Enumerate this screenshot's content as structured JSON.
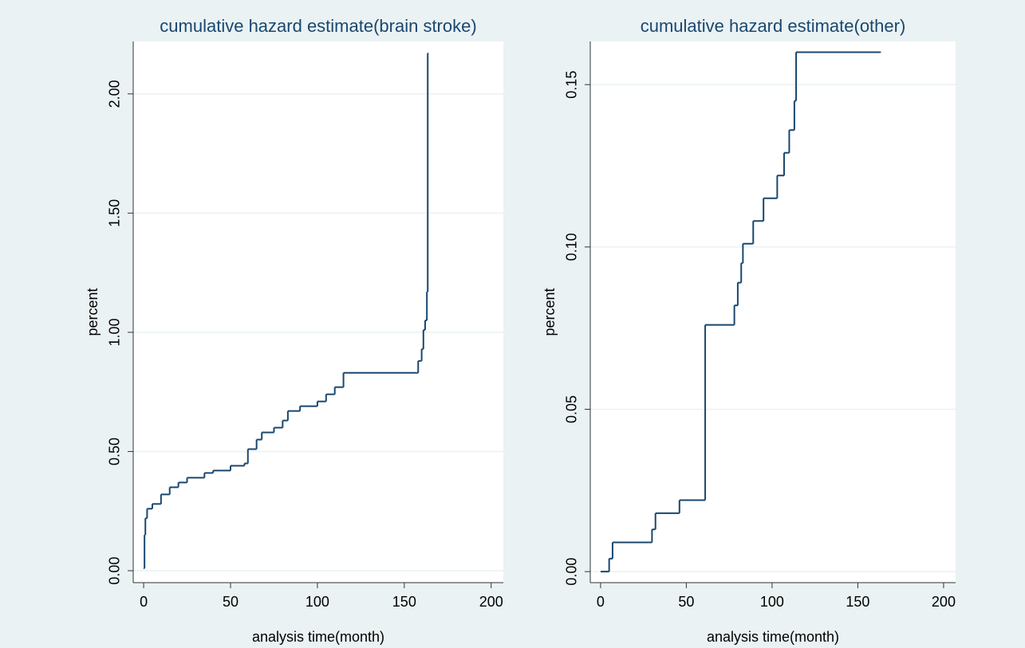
{
  "chart_data": [
    {
      "type": "line",
      "step": true,
      "title": "cumulative hazard estimate(brain stroke)",
      "x_label": "analysis time(month)",
      "y_label": "percent",
      "color": "#1a476f",
      "grid": true,
      "x": [
        0,
        0.5,
        1,
        2,
        5,
        10,
        15,
        20,
        25,
        35,
        40,
        50,
        58,
        60,
        65,
        68,
        75,
        80,
        83,
        90,
        100,
        105,
        110,
        115,
        157,
        158,
        160,
        161,
        162,
        163,
        163.5
      ],
      "values": [
        0.01,
        0.15,
        0.22,
        0.26,
        0.28,
        0.32,
        0.35,
        0.37,
        0.39,
        0.41,
        0.42,
        0.44,
        0.45,
        0.51,
        0.55,
        0.58,
        0.6,
        0.63,
        0.67,
        0.69,
        0.71,
        0.74,
        0.77,
        0.83,
        0.83,
        0.88,
        0.93,
        1.01,
        1.05,
        1.17,
        2.17
      ],
      "xlim": [
        -6,
        207
      ],
      "xticks": [
        0,
        50,
        100,
        150,
        200
      ],
      "ylim": [
        -0.05,
        2.22
      ],
      "yticks": [
        {
          "value": 0,
          "label": "0.00"
        },
        {
          "value": 0.5,
          "label": "0.50"
        },
        {
          "value": 1,
          "label": "1.00"
        },
        {
          "value": 1.5,
          "label": "1.50"
        },
        {
          "value": 2,
          "label": "2.00"
        }
      ]
    },
    {
      "type": "line",
      "step": true,
      "title": "cumulative hazard estimate(other)",
      "x_label": "analysis time(month)",
      "y_label": "percent",
      "color": "#1a476f",
      "grid": true,
      "x": [
        0,
        5,
        7,
        30,
        32,
        46,
        61,
        78,
        80,
        82,
        83,
        89,
        95,
        103,
        107,
        110,
        113,
        114,
        163
      ],
      "values": [
        0,
        0.004,
        0.009,
        0.013,
        0.018,
        0.022,
        0.076,
        0.082,
        0.089,
        0.095,
        0.101,
        0.108,
        0.115,
        0.122,
        0.129,
        0.136,
        0.145,
        0.16,
        0.16
      ],
      "xlim": [
        -6,
        207
      ],
      "xticks": [
        0,
        50,
        100,
        150,
        200
      ],
      "ylim": [
        -0.0034,
        0.1633
      ],
      "yticks": [
        {
          "value": 0,
          "label": "0.00"
        },
        {
          "value": 0.05,
          "label": "0.05"
        },
        {
          "value": 0.1,
          "label": "0.10"
        },
        {
          "value": 0.15,
          "label": "0.15"
        }
      ]
    }
  ]
}
